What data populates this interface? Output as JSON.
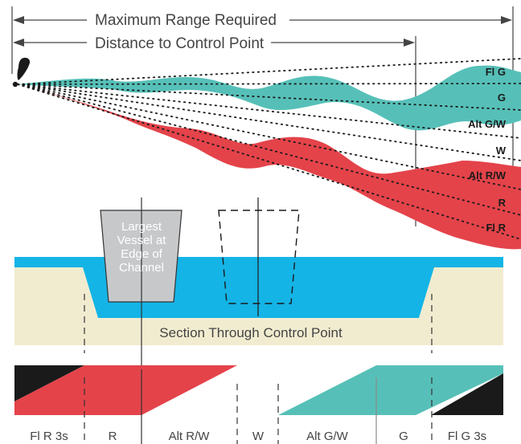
{
  "header": {
    "max_range_label": "Maximum Range Required",
    "control_point_label": "Distance to Control Point"
  },
  "sectors": [
    {
      "label": "Fl G"
    },
    {
      "label": "G"
    },
    {
      "label": "Alt G/W"
    },
    {
      "label": "W"
    },
    {
      "label": "Alt R/W"
    },
    {
      "label": "R"
    },
    {
      "label": "Fl R"
    }
  ],
  "vessel": {
    "lines": [
      "Largest",
      "Vessel at",
      "Edge of",
      "Channel"
    ]
  },
  "section": {
    "label": "Section Through Control Point"
  },
  "strip": {
    "labels": [
      "Fl R 3s",
      "R",
      "Alt R/W",
      "W",
      "Alt G/W",
      "G",
      "Fl G 3s"
    ]
  },
  "colors": {
    "green": "#56c0b8",
    "red": "#e4434a",
    "water": "#14b4e6",
    "land": "#f1ecd0",
    "vessel": "#c6c8ca",
    "black": "#1a1a1a",
    "text": "#444444"
  }
}
